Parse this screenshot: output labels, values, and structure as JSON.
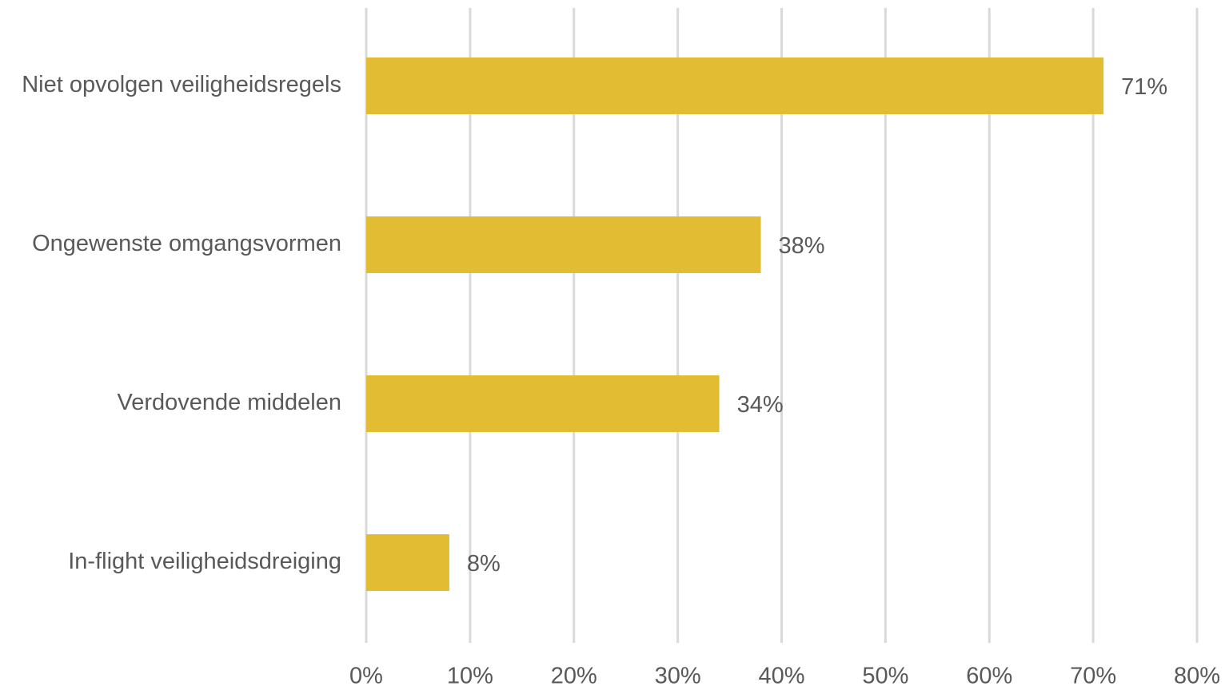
{
  "chart_data": {
    "type": "bar",
    "orientation": "horizontal",
    "title": "",
    "xlabel": "",
    "ylabel": "",
    "categories": [
      "Niet opvolgen veiligheidsregels",
      "Ongewenste omgangsvormen",
      "Verdovende middelen",
      "In-flight veiligheidsdreiging"
    ],
    "values": [
      71,
      38,
      34,
      8
    ],
    "data_labels": [
      "71%",
      "38%",
      "34%",
      "8%"
    ],
    "xlim": [
      0,
      80
    ],
    "x_ticks": [
      0,
      10,
      20,
      30,
      40,
      50,
      60,
      70,
      80
    ],
    "x_tick_labels": [
      "0%",
      "10%",
      "20%",
      "30%",
      "40%",
      "50%",
      "60%",
      "70%",
      "80%"
    ],
    "grid": "vertical",
    "legend": "none",
    "bar_color": "#e2bd33",
    "grid_color": "#d9d9d9",
    "text_color": "#595959"
  }
}
